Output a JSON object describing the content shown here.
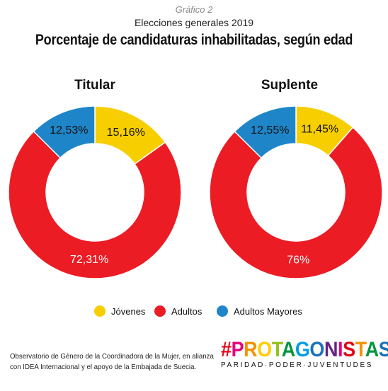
{
  "header": {
    "kicker": "Gráfico 2",
    "subtitle": "Elecciones generales 2019",
    "title": "Porcentaje de candidaturas inhabilitadas, según edad"
  },
  "chart_data": [
    {
      "type": "pie",
      "title": "Titular",
      "categories": [
        "Jóvenes",
        "Adultos",
        "Adultos Mayores"
      ],
      "values": [
        15.16,
        72.31,
        12.53
      ],
      "labels": [
        "15,16%",
        "72,31%",
        "12,53%"
      ],
      "colors": [
        "#f7cf00",
        "#ec1c24",
        "#1e86c8"
      ],
      "label_colors": [
        "#111111",
        "#ffffff",
        "#111111"
      ],
      "donut": true,
      "legend_position": "bottom"
    },
    {
      "type": "pie",
      "title": "Suplente",
      "categories": [
        "Jóvenes",
        "Adultos",
        "Adultos Mayores"
      ],
      "values": [
        11.45,
        76,
        12.55
      ],
      "labels": [
        "11,45%",
        "76%",
        "12,55%"
      ],
      "colors": [
        "#f7cf00",
        "#ec1c24",
        "#1e86c8"
      ],
      "label_colors": [
        "#111111",
        "#ffffff",
        "#111111"
      ],
      "donut": true,
      "legend_position": "bottom"
    }
  ],
  "legend": [
    {
      "label": "Jóvenes",
      "color": "#f7cf00"
    },
    {
      "label": "Adultos",
      "color": "#ec1c24"
    },
    {
      "label": "Adultos Mayores",
      "color": "#1e86c8"
    }
  ],
  "source": {
    "line1": "Observatorio de Género de la Coordinadora de la Mujer, en alianza",
    "line2": "con IDEA Internacional y el apoyo de la Embajada de Suecia."
  },
  "brand": {
    "hash": "#",
    "letters": [
      "P",
      "R",
      "O",
      "T",
      "A",
      "G",
      "O",
      "N",
      "I",
      "S",
      "T",
      "A",
      "S"
    ],
    "letter_colors": [
      "#e4007c",
      "#f39200",
      "#ffcc00",
      "#95c11f",
      "#009640",
      "#009fe3",
      "#1d71b8",
      "#662483",
      "#e4007c",
      "#e30613",
      "#f39200",
      "#009640",
      "#1d71b8"
    ],
    "hash_color": "#e30613",
    "tagline": "PARIDAD·PODER·JUVENTUDES"
  }
}
